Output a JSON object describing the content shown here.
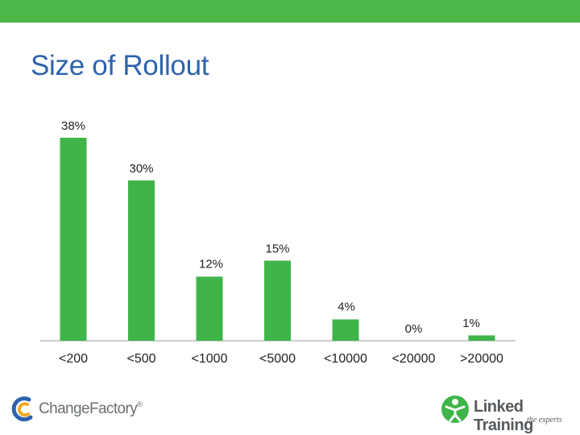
{
  "header": {
    "bar_color": "#4cb748"
  },
  "slide": {
    "title": "Size of Rollout"
  },
  "chart_data": {
    "type": "bar",
    "categories": [
      "<200",
      "<500",
      "<1000",
      "<5000",
      "<10000",
      "<20000",
      ">20000"
    ],
    "values": [
      38,
      30,
      12,
      15,
      4,
      0,
      1
    ],
    "data_labels": [
      "38%",
      "30%",
      "12%",
      "15%",
      "4%",
      "0%",
      "1%"
    ],
    "title": "",
    "xlabel": "",
    "ylabel": "",
    "ylim": [
      0,
      38
    ],
    "grid": false,
    "legend": "none",
    "bar_color": "#3fb549"
  },
  "logos": {
    "left": {
      "text": "ChangeFactory",
      "registered": "®",
      "icon": "change-factory-swirl-icon"
    },
    "right": {
      "text": "Linked Training",
      "tagline": "the experts",
      "icon": "linked-training-figure-icon"
    }
  }
}
